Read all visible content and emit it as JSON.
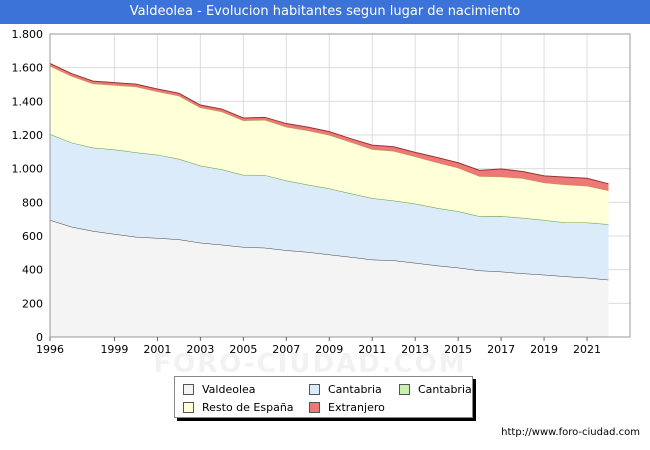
{
  "header": {
    "title": "Valdeolea - Evolucion habitantes segun lugar de nacimiento"
  },
  "footer": {
    "url": "http://www.foro-ciudad.com"
  },
  "chart_data": {
    "type": "area",
    "stacked": true,
    "title": "Valdeolea - Evolucion habitantes segun lugar de nacimiento",
    "xlabel": "",
    "ylabel": "",
    "xlim": [
      1996,
      2023
    ],
    "ylim": [
      0,
      1800
    ],
    "x_ticks": [
      1996,
      1999,
      2001,
      2003,
      2005,
      2007,
      2009,
      2011,
      2013,
      2015,
      2017,
      2019,
      2021
    ],
    "y_ticks": [
      0,
      200,
      400,
      600,
      800,
      1000,
      1200,
      1400,
      1600,
      1800
    ],
    "y_tick_labels": [
      "0",
      "200",
      "400",
      "600",
      "800",
      "1.000",
      "1.200",
      "1.400",
      "1.600",
      "1.800"
    ],
    "grid": true,
    "legend_position": "bottom",
    "x": [
      1996,
      1997,
      1998,
      1999,
      2000,
      2001,
      2002,
      2003,
      2004,
      2005,
      2006,
      2007,
      2008,
      2009,
      2010,
      2011,
      2012,
      2013,
      2014,
      2015,
      2016,
      2017,
      2018,
      2019,
      2020,
      2021,
      2022
    ],
    "series": [
      {
        "name": "Valdeolea",
        "color": "#f4f4f4",
        "line": "#444444",
        "values": [
          695,
          655,
          630,
          612,
          595,
          588,
          580,
          560,
          548,
          535,
          530,
          515,
          505,
          490,
          475,
          460,
          455,
          440,
          425,
          412,
          395,
          388,
          378,
          370,
          360,
          352,
          340
        ]
      },
      {
        "name": "Cantabria",
        "color": "#dcebfa",
        "line": "#7799cc",
        "values": [
          510,
          500,
          495,
          502,
          502,
          495,
          478,
          458,
          448,
          428,
          432,
          415,
          400,
          392,
          378,
          365,
          355,
          352,
          342,
          335,
          322,
          330,
          330,
          325,
          320,
          328,
          330
        ]
      },
      {
        "name": "Cantabria",
        "color": "#c8f0b0",
        "line": "#66aa44",
        "values": [
          0,
          0,
          0,
          0,
          0,
          0,
          0,
          0,
          0,
          0,
          0,
          0,
          0,
          0,
          0,
          0,
          0,
          0,
          0,
          0,
          0,
          0,
          0,
          0,
          0,
          0,
          0
        ]
      },
      {
        "name": "Resto de España",
        "color": "#ffffd8",
        "line": "#aaaa55",
        "values": [
          405,
          395,
          380,
          382,
          390,
          375,
          375,
          345,
          343,
          323,
          328,
          318,
          322,
          318,
          305,
          290,
          295,
          280,
          270,
          258,
          238,
          235,
          235,
          222,
          225,
          218,
          200
        ]
      },
      {
        "name": "Extranjero",
        "color": "#ee7777",
        "line": "#993333",
        "values": [
          15,
          15,
          15,
          15,
          15,
          15,
          15,
          15,
          15,
          15,
          15,
          20,
          20,
          20,
          20,
          25,
          25,
          25,
          30,
          30,
          35,
          45,
          40,
          40,
          45,
          45,
          40
        ]
      }
    ]
  },
  "watermark": "FORO-CIUDAD.COM"
}
